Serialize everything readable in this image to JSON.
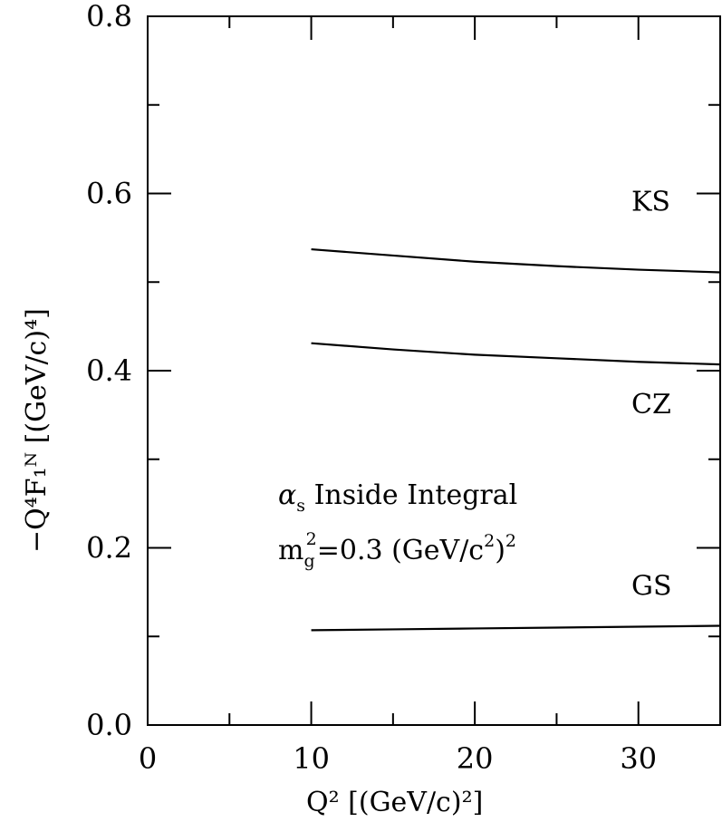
{
  "chart_data": {
    "type": "line",
    "xlabel": "Q²  [(GeV/c)²]",
    "ylabel": "−Q⁴F₁ᴺ  [(GeV/c)⁴]",
    "xlim": [
      0,
      35
    ],
    "ylim": [
      0.0,
      0.8
    ],
    "x_ticks": [
      0,
      10,
      20,
      30
    ],
    "x_tick_labels": [
      "0",
      "10",
      "20",
      "30"
    ],
    "y_ticks": [
      0.0,
      0.2,
      0.4,
      0.6,
      0.8
    ],
    "y_tick_labels": [
      "0.0",
      "0.2",
      "0.4",
      "0.6",
      "0.8"
    ],
    "x_minor_step": 5,
    "y_minor_step": 0.1,
    "grid": false,
    "x": [
      10,
      15,
      20,
      25,
      30,
      35
    ],
    "series": [
      {
        "name": "KS",
        "values": [
          0.537,
          0.53,
          0.523,
          0.518,
          0.514,
          0.511
        ]
      },
      {
        "name": "CZ",
        "values": [
          0.431,
          0.424,
          0.418,
          0.414,
          0.41,
          0.407
        ]
      },
      {
        "name": "GS",
        "values": [
          0.107,
          0.108,
          0.109,
          0.11,
          0.111,
          0.112
        ]
      }
    ],
    "annotations": {
      "line1_symbol": "α",
      "line1_sub": "s",
      "line1_text": " Inside Integral",
      "line2_m": "m",
      "line2_sub": "g",
      "line2_sup": "2",
      "line2_mid": "=0.3 (GeV/c",
      "line2_sup2": "2",
      "line2_end": ")",
      "line2_sup3": "2"
    }
  }
}
